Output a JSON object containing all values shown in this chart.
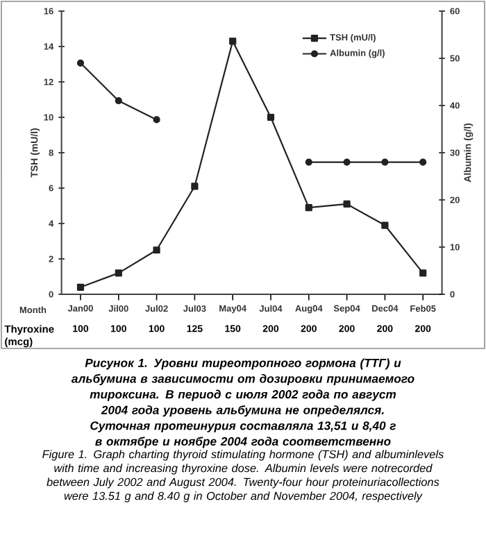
{
  "chart_data": {
    "type": "line",
    "ylabel": "TSH (mU/l)",
    "y2label": "Albumin (g/l)",
    "categories": [
      "Jan00",
      "Jil00",
      "Jul02",
      "Jul03",
      "May04",
      "Jul04",
      "Aug04",
      "Sep04",
      "Dec04",
      "Feb05"
    ],
    "series": [
      {
        "name": "TSH (mU/l)",
        "color": "#222222",
        "marker": "square",
        "values": [
          0.4,
          1.2,
          2.5,
          6.1,
          14.3,
          10.0,
          4.9,
          5.1,
          3.9,
          1.2
        ]
      },
      {
        "name": "Albumin (g/l)",
        "color": "#222222",
        "marker": "circle",
        "axis": "y2",
        "values": [
          49,
          41,
          37,
          null,
          null,
          null,
          28,
          28,
          28,
          28
        ]
      }
    ],
    "ylim": [
      0,
      16
    ],
    "yticks": [
      0,
      2,
      4,
      6,
      8,
      10,
      12,
      14,
      16
    ],
    "y2lim": [
      0,
      60
    ],
    "y2ticks": [
      0,
      10,
      20,
      30,
      40,
      50,
      60
    ],
    "legend": "top right",
    "grid": false,
    "line_style": "solid",
    "annotations": [
      "Month",
      "Thyroxine (mcg)",
      "100",
      "100",
      "100",
      "125",
      "150",
      "200",
      "200",
      "200",
      "200",
      "200",
      "Рисунок 1. Уровни тиреотропного гормона (ТТГ) и альбумина в зависимости от дозировки принимаемого тироксина. В период с июля 2002 года по август 2004 года уровень альбумина не определялся. Суточная протеинурия составляла 13,51 и 8,40 г в октябре и ноябре 2004 года соответственно",
      "Figure 1. Graph charting thyroid stimulating hormone (TSH) and albuminlevels with time and increasing thyroxine dose. Albumin levels were notrecorded between July 2002 and August 2004. Twenty-four hour proteinuriacollections were 13.51 g and 8.40 g in October and November 2004, respectively"
    ]
  }
}
